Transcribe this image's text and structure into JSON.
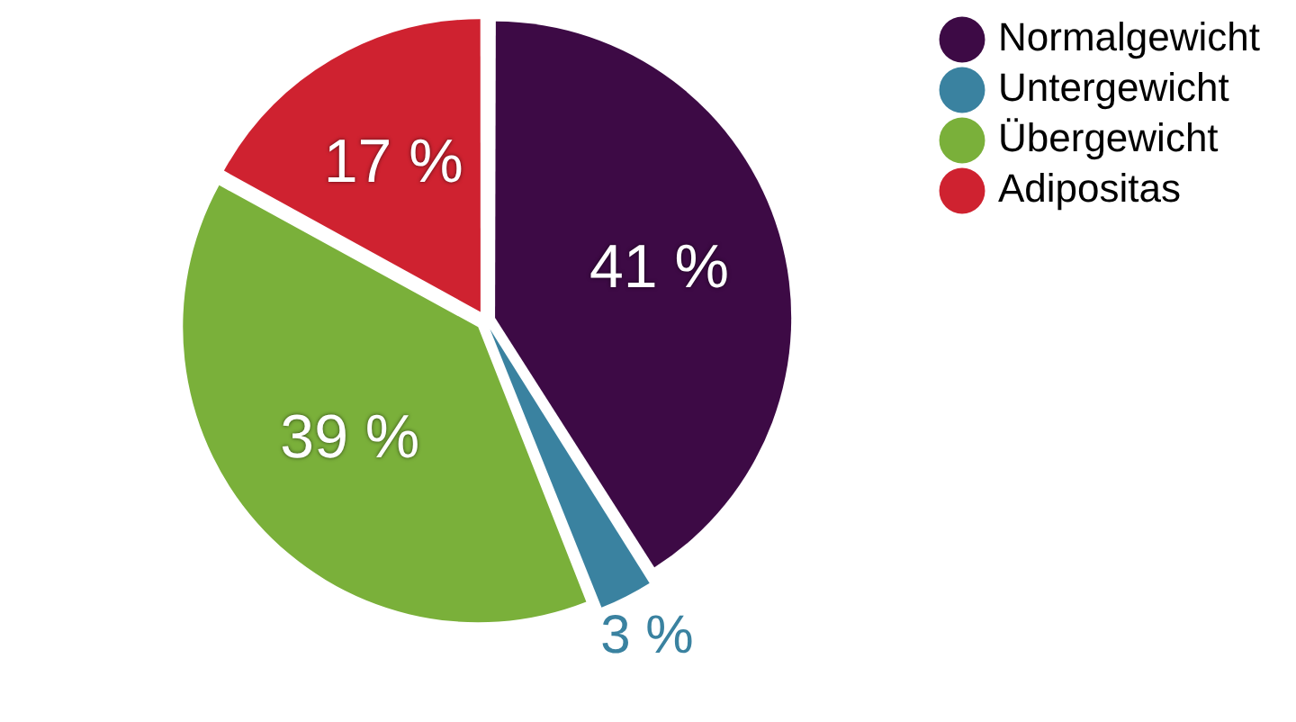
{
  "chart_data": {
    "type": "pie",
    "categories": [
      "Normalgewicht",
      "Untergewicht",
      "Übergewicht",
      "Adipositas"
    ],
    "values": [
      41,
      3,
      39,
      17
    ],
    "colors": [
      "#3d0a45",
      "#3a82a0",
      "#7ab03a",
      "#cf2230"
    ],
    "value_labels": [
      "41 %",
      "3 %",
      "39 %",
      "17 %"
    ],
    "legend": "top right"
  }
}
